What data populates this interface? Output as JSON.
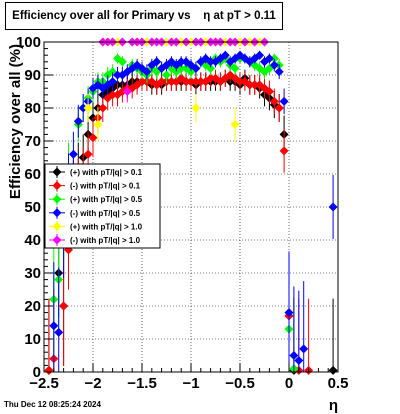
{
  "header": {
    "title": "Efficiency over all for Primary vs    η at pT > 0.11",
    "timestamp": "Thu Dec 12 08:25:24 2024"
  },
  "chart_data": {
    "type": "scatter",
    "title": "Efficiency over all for Primary vs    η at pT > 0.11",
    "xlabel": "η",
    "ylabel": "Efficiency over all (%)",
    "xlim": [
      -2.5,
      0.5
    ],
    "ylim": [
      0,
      100
    ],
    "x_ticks": [
      "−2.5",
      "−2",
      "−1.5",
      "−1",
      "−0.5",
      "0",
      "0.5"
    ],
    "y_ticks": [
      "0",
      "10",
      "20",
      "30",
      "40",
      "50",
      "60",
      "70",
      "80",
      "90",
      "100"
    ],
    "grid": true,
    "legend_position": "middle-left",
    "series": [
      {
        "name": "(+) with pT/|q| > 0.1",
        "color": "#000000",
        "points": [
          [
            -2.45,
            0.5
          ],
          [
            -2.35,
            30
          ],
          [
            -2.3,
            20
          ],
          [
            -2.25,
            40
          ],
          [
            -2.2,
            58
          ],
          [
            -2.15,
            62
          ],
          [
            -2.1,
            65
          ],
          [
            -2.05,
            72
          ],
          [
            -2.0,
            77
          ],
          [
            -1.95,
            80
          ],
          [
            -1.9,
            84
          ],
          [
            -1.85,
            85
          ],
          [
            -1.8,
            86
          ],
          [
            -1.75,
            87
          ],
          [
            -1.7,
            87
          ],
          [
            -1.65,
            87
          ],
          [
            -1.6,
            88
          ],
          [
            -1.55,
            88
          ],
          [
            -1.5,
            88
          ],
          [
            -1.45,
            88
          ],
          [
            -1.4,
            87
          ],
          [
            -1.35,
            87
          ],
          [
            -1.3,
            87
          ],
          [
            -1.25,
            88
          ],
          [
            -1.2,
            88
          ],
          [
            -1.15,
            88
          ],
          [
            -1.1,
            88
          ],
          [
            -1.05,
            88
          ],
          [
            -1.0,
            88
          ],
          [
            -0.95,
            87
          ],
          [
            -0.9,
            88
          ],
          [
            -0.85,
            88
          ],
          [
            -0.8,
            88
          ],
          [
            -0.75,
            88
          ],
          [
            -0.7,
            88
          ],
          [
            -0.65,
            89
          ],
          [
            -0.6,
            88
          ],
          [
            -0.55,
            88
          ],
          [
            -0.5,
            87
          ],
          [
            -0.45,
            89
          ],
          [
            -0.4,
            87
          ],
          [
            -0.35,
            87
          ],
          [
            -0.3,
            86
          ],
          [
            -0.25,
            84
          ],
          [
            -0.2,
            83
          ],
          [
            -0.15,
            81
          ],
          [
            -0.1,
            80
          ],
          [
            -0.05,
            72
          ],
          [
            0.0,
            17
          ],
          [
            0.05,
            0.5
          ],
          [
            0.45,
            0.5
          ]
        ]
      },
      {
        "name": "(-) with pT/|q| > 0.1",
        "color": "#ff0000",
        "points": [
          [
            -2.45,
            0.5
          ],
          [
            -2.4,
            4
          ],
          [
            -2.3,
            20
          ],
          [
            -2.25,
            37
          ],
          [
            -2.2,
            50
          ],
          [
            -2.15,
            56
          ],
          [
            -2.1,
            60
          ],
          [
            -2.05,
            66
          ],
          [
            -2.0,
            71
          ],
          [
            -1.95,
            77
          ],
          [
            -1.9,
            80
          ],
          [
            -1.85,
            83
          ],
          [
            -1.8,
            84
          ],
          [
            -1.75,
            84
          ],
          [
            -1.7,
            85
          ],
          [
            -1.65,
            86
          ],
          [
            -1.6,
            86
          ],
          [
            -1.55,
            87
          ],
          [
            -1.5,
            88
          ],
          [
            -1.45,
            88
          ],
          [
            -1.4,
            88
          ],
          [
            -1.35,
            87
          ],
          [
            -1.3,
            88
          ],
          [
            -1.25,
            88
          ],
          [
            -1.2,
            88
          ],
          [
            -1.15,
            88
          ],
          [
            -1.1,
            89
          ],
          [
            -1.05,
            88
          ],
          [
            -1.0,
            88
          ],
          [
            -0.95,
            88
          ],
          [
            -0.9,
            88
          ],
          [
            -0.85,
            88
          ],
          [
            -0.8,
            89
          ],
          [
            -0.75,
            89
          ],
          [
            -0.7,
            88
          ],
          [
            -0.65,
            89
          ],
          [
            -0.6,
            90
          ],
          [
            -0.55,
            89
          ],
          [
            -0.5,
            88
          ],
          [
            -0.45,
            88
          ],
          [
            -0.4,
            87
          ],
          [
            -0.35,
            87
          ],
          [
            -0.3,
            87
          ],
          [
            -0.25,
            86
          ],
          [
            -0.2,
            85
          ],
          [
            -0.15,
            82
          ],
          [
            -0.1,
            80
          ],
          [
            -0.05,
            67
          ],
          [
            0.0,
            17
          ],
          [
            0.05,
            1
          ],
          [
            0.1,
            0.5
          ],
          [
            0.2,
            0.5
          ]
        ]
      },
      {
        "name": "(+) with pT/|q| > 0.5",
        "color": "#00ff00",
        "points": [
          [
            -2.4,
            22
          ],
          [
            -2.35,
            28
          ],
          [
            -2.3,
            45
          ],
          [
            -2.25,
            62
          ],
          [
            -2.15,
            75
          ],
          [
            -2.1,
            80
          ],
          [
            -2.05,
            83
          ],
          [
            -2.0,
            85
          ],
          [
            -1.95,
            88
          ],
          [
            -1.9,
            88
          ],
          [
            -1.85,
            90
          ],
          [
            -1.8,
            91
          ],
          [
            -1.75,
            95
          ],
          [
            -1.7,
            94
          ],
          [
            -1.6,
            93
          ],
          [
            -1.55,
            92
          ],
          [
            -1.5,
            91
          ],
          [
            -1.45,
            90
          ],
          [
            -1.4,
            92
          ],
          [
            -1.35,
            91
          ],
          [
            -1.3,
            92
          ],
          [
            -1.25,
            90
          ],
          [
            -1.2,
            92
          ],
          [
            -1.15,
            91
          ],
          [
            -1.1,
            92
          ],
          [
            -1.05,
            92
          ],
          [
            -1.0,
            91
          ],
          [
            -0.95,
            92
          ],
          [
            -0.9,
            94
          ],
          [
            -0.85,
            93
          ],
          [
            -0.8,
            92
          ],
          [
            -0.75,
            95
          ],
          [
            -0.7,
            94
          ],
          [
            -0.65,
            95
          ],
          [
            -0.6,
            93
          ],
          [
            -0.55,
            92
          ],
          [
            -0.5,
            95
          ],
          [
            -0.45,
            95
          ],
          [
            -0.4,
            94
          ],
          [
            -0.35,
            93
          ],
          [
            -0.3,
            92
          ],
          [
            -0.25,
            91
          ],
          [
            -0.2,
            92
          ],
          [
            -0.15,
            95
          ],
          [
            -0.1,
            93
          ],
          [
            0.0,
            13
          ],
          [
            0.05,
            1
          ]
        ]
      },
      {
        "name": "(-) with pT/|q| > 0.5",
        "color": "#0000ff",
        "points": [
          [
            -2.4,
            14
          ],
          [
            -2.35,
            12
          ],
          [
            -2.3,
            40
          ],
          [
            -2.25,
            58
          ],
          [
            -2.2,
            66
          ],
          [
            -2.15,
            76
          ],
          [
            -2.1,
            80
          ],
          [
            -2.05,
            82
          ],
          [
            -2.0,
            86
          ],
          [
            -1.95,
            87
          ],
          [
            -1.9,
            86
          ],
          [
            -1.85,
            87
          ],
          [
            -1.8,
            88
          ],
          [
            -1.75,
            90
          ],
          [
            -1.7,
            90
          ],
          [
            -1.65,
            91
          ],
          [
            -1.6,
            92
          ],
          [
            -1.55,
            93
          ],
          [
            -1.5,
            92
          ],
          [
            -1.45,
            91
          ],
          [
            -1.4,
            93
          ],
          [
            -1.35,
            94
          ],
          [
            -1.3,
            92
          ],
          [
            -1.25,
            93
          ],
          [
            -1.2,
            94
          ],
          [
            -1.15,
            93
          ],
          [
            -1.1,
            94
          ],
          [
            -1.05,
            94
          ],
          [
            -1.0,
            93
          ],
          [
            -0.95,
            92
          ],
          [
            -0.9,
            94
          ],
          [
            -0.85,
            95
          ],
          [
            -0.8,
            94
          ],
          [
            -0.75,
            94
          ],
          [
            -0.7,
            95
          ],
          [
            -0.65,
            96
          ],
          [
            -0.6,
            94
          ],
          [
            -0.55,
            95
          ],
          [
            -0.5,
            96
          ],
          [
            -0.45,
            95
          ],
          [
            -0.4,
            94
          ],
          [
            -0.35,
            95
          ],
          [
            -0.3,
            96
          ],
          [
            -0.25,
            94
          ],
          [
            -0.2,
            95
          ],
          [
            -0.15,
            93
          ],
          [
            -0.1,
            91
          ],
          [
            -0.05,
            82
          ],
          [
            0.0,
            18
          ],
          [
            0.05,
            5
          ],
          [
            0.1,
            3.5
          ],
          [
            0.15,
            7
          ],
          [
            0.45,
            50
          ]
        ]
      },
      {
        "name": "(+) with pT/|q| > 1.0",
        "color": "#ffff00",
        "points": [
          [
            -2.05,
            80
          ],
          [
            -1.95,
            75
          ],
          [
            -1.9,
            100
          ],
          [
            -1.85,
            100
          ],
          [
            -1.8,
            100
          ],
          [
            -1.75,
            100
          ],
          [
            -1.6,
            100
          ],
          [
            -1.55,
            100
          ],
          [
            -1.5,
            100
          ],
          [
            -1.45,
            100
          ],
          [
            -1.4,
            100
          ],
          [
            -1.35,
            100
          ],
          [
            -1.3,
            100
          ],
          [
            -1.25,
            100
          ],
          [
            -1.2,
            100
          ],
          [
            -1.1,
            100
          ],
          [
            -1.05,
            100
          ],
          [
            -1.0,
            100
          ],
          [
            -0.95,
            80
          ],
          [
            -0.9,
            100
          ],
          [
            -0.85,
            100
          ],
          [
            -0.8,
            100
          ],
          [
            -0.75,
            100
          ],
          [
            -0.7,
            100
          ],
          [
            -0.65,
            100
          ],
          [
            -0.6,
            100
          ],
          [
            -0.55,
            75
          ],
          [
            -0.5,
            100
          ],
          [
            -0.45,
            100
          ],
          [
            -0.4,
            100
          ],
          [
            -0.3,
            100
          ],
          [
            -0.25,
            100
          ]
        ]
      },
      {
        "name": "(-) with pT/|q| > 1.0",
        "color": "#ff00ff",
        "points": [
          [
            -1.9,
            100
          ],
          [
            -1.85,
            100
          ],
          [
            -1.8,
            100
          ],
          [
            -1.7,
            100
          ],
          [
            -1.65,
            85
          ],
          [
            -1.6,
            100
          ],
          [
            -1.55,
            100
          ],
          [
            -1.5,
            100
          ],
          [
            -1.4,
            100
          ],
          [
            -1.35,
            100
          ],
          [
            -1.3,
            100
          ],
          [
            -1.2,
            100
          ],
          [
            -1.15,
            100
          ],
          [
            -1.05,
            100
          ],
          [
            -0.95,
            100
          ],
          [
            -0.9,
            100
          ],
          [
            -0.8,
            100
          ],
          [
            -0.75,
            100
          ],
          [
            -0.7,
            100
          ],
          [
            -0.6,
            100
          ],
          [
            -0.55,
            100
          ],
          [
            -0.45,
            100
          ],
          [
            -0.35,
            100
          ],
          [
            -0.25,
            100
          ]
        ]
      }
    ]
  }
}
